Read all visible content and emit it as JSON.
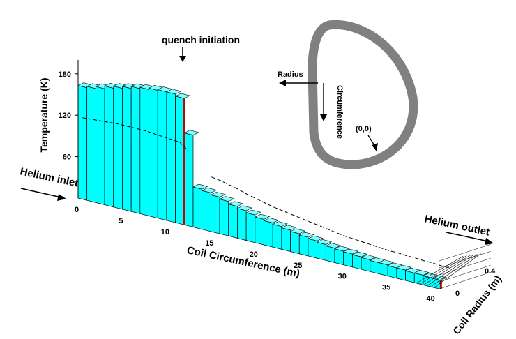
{
  "chart_data": {
    "type": "bar",
    "view": "3d-surface",
    "x": [
      0.5,
      1.5,
      2.5,
      3.5,
      4.5,
      5.5,
      6.5,
      7.5,
      8.5,
      9.5,
      10.5,
      11.5,
      12.5,
      13.5,
      14.5,
      15.5,
      16.5,
      17.5,
      18.5,
      19.5,
      20.5,
      21.5,
      22.5,
      23.5,
      24.5,
      25.5,
      26.5,
      27.5,
      28.5,
      29.5,
      30.5,
      31.5,
      32.5,
      33.5,
      34.5,
      35.5,
      36.5,
      37.5,
      38.5,
      39.5,
      40.5
    ],
    "values": [
      163,
      165,
      168,
      172,
      175,
      178,
      181,
      183,
      185,
      186,
      186,
      183,
      133,
      58,
      56,
      53,
      50,
      46,
      43,
      40,
      37,
      35,
      33,
      31,
      29,
      27,
      25,
      23,
      21,
      20,
      19,
      18,
      17,
      16,
      16,
      15,
      15,
      14,
      14,
      13,
      13
    ],
    "inner_values": [
      118,
      119,
      120,
      121,
      122,
      122,
      122,
      122,
      121,
      120,
      119,
      118,
      108
    ],
    "xlabel": "Coil Circumference (m)",
    "ylabel": "Temperature (K)",
    "zlabel": "Coil Radius (m)",
    "xlim": [
      0,
      42
    ],
    "ylim": [
      0,
      200
    ],
    "zlim": [
      0,
      0.5
    ],
    "xticks": [
      "0",
      "5",
      "10",
      "15",
      "20",
      "25",
      "30",
      "35",
      "40"
    ],
    "yticks": [
      "60",
      "120",
      "180"
    ],
    "zticks": [
      "0",
      "0.4"
    ],
    "colors": {
      "bar_face": "#00ffff",
      "bar_edge": "#000000",
      "hot_edge": "#cc0000",
      "coil": "#808080"
    }
  },
  "annotations": {
    "quench": "quench initiation",
    "inlet": "Helium inlet",
    "outlet": "Helium outlet"
  },
  "inset": {
    "radius": "Radius",
    "circumference": "Circumference",
    "origin": "(0,0)"
  }
}
